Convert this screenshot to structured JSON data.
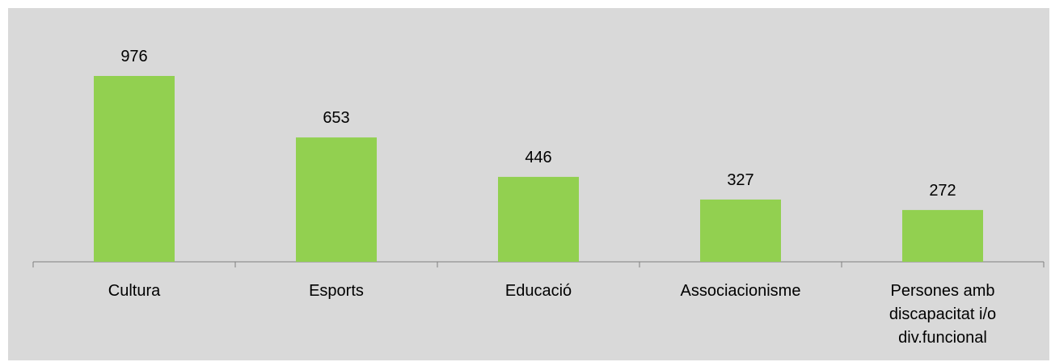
{
  "chart_data": {
    "type": "bar",
    "categories": [
      "Cultura",
      "Esports",
      "Educació",
      "Associacionisme",
      "Persones amb discapacitat i/o div.funcional"
    ],
    "category_lines": [
      [
        "Cultura"
      ],
      [
        "Esports"
      ],
      [
        "Educació"
      ],
      [
        "Associacionisme"
      ],
      [
        "Persones amb",
        "discapacitat i/o",
        "div.funcional"
      ]
    ],
    "values": [
      976,
      653,
      446,
      327,
      272
    ],
    "title": "",
    "xlabel": "",
    "ylabel": "",
    "ylim": [
      0,
      1000
    ],
    "grid": false,
    "legend": "none",
    "data_labels": true,
    "colors": {
      "bar": "#92d050",
      "background": "#d9d9d9",
      "axis": "#7f7f7f",
      "text": "#000000"
    }
  }
}
